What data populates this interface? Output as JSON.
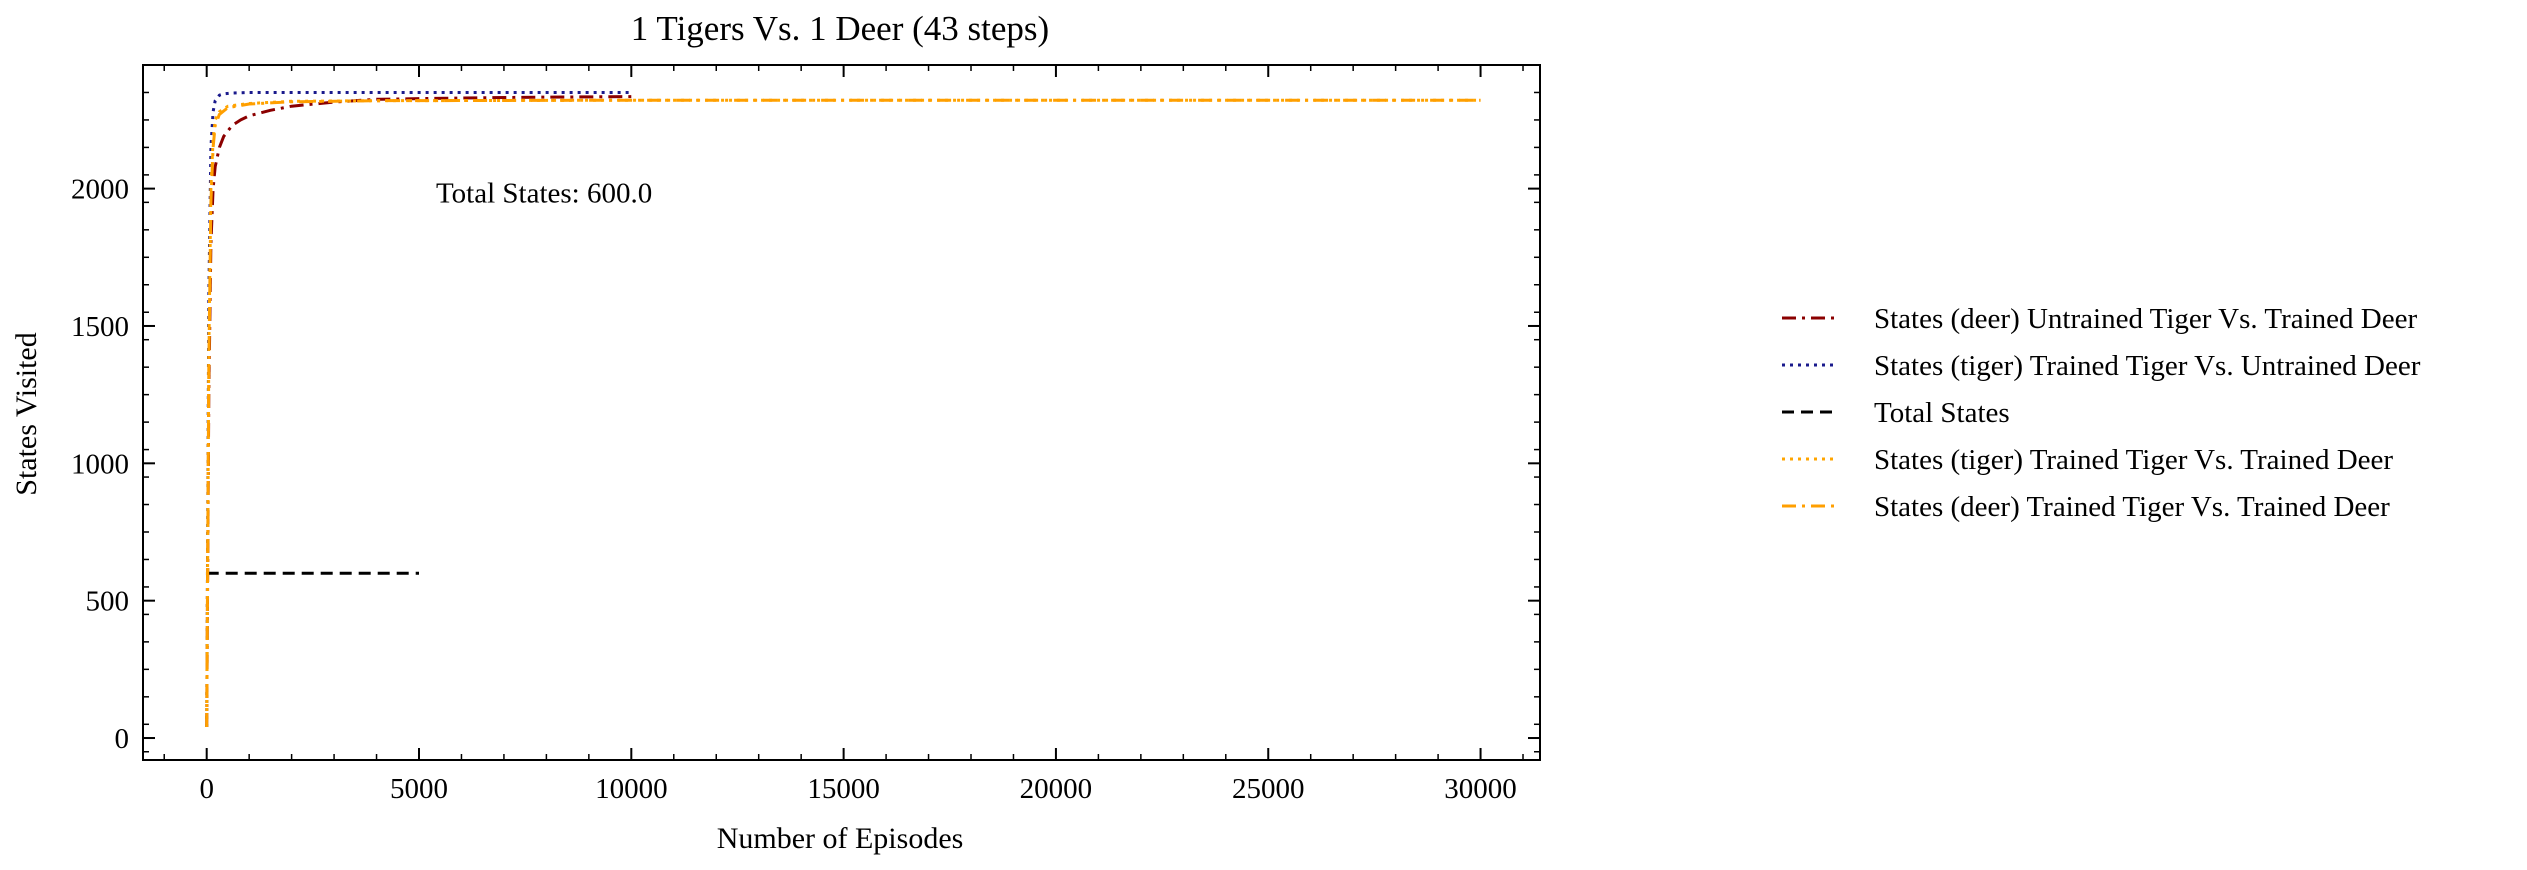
{
  "chart_data": {
    "type": "line",
    "title": "1 Tigers Vs. 1 Deer (43 steps)",
    "xlabel": "Number of Episodes",
    "ylabel": "States Visited",
    "xlim": [
      -1500,
      31400
    ],
    "ylim": [
      -80,
      2450
    ],
    "xticks": [
      0,
      5000,
      10000,
      15000,
      20000,
      25000,
      30000
    ],
    "yticks": [
      0,
      500,
      1000,
      1500,
      2000
    ],
    "grid": false,
    "legend_position": "right, outside plot",
    "annotation": {
      "text": "Total States: 600.0",
      "x": 5400,
      "y": 1950
    },
    "series": [
      {
        "name": "States (deer) Untrained Tiger Vs. Trained Deer",
        "color": "#8b0000",
        "dash": "dashdot",
        "x": [
          0,
          50,
          100,
          150,
          200,
          300,
          400,
          600,
          800,
          1000,
          1500,
          2000,
          3000,
          4000,
          6000,
          8000,
          10000
        ],
        "y": [
          40,
          1250,
          1800,
          2000,
          2080,
          2150,
          2190,
          2230,
          2250,
          2265,
          2285,
          2300,
          2315,
          2325,
          2330,
          2333,
          2335
        ]
      },
      {
        "name": "States (tiger) Trained Tiger Vs. Untrained Deer",
        "color": "#1a1a8c",
        "dash": "dotted",
        "x": [
          0,
          50,
          100,
          150,
          200,
          300,
          400,
          600,
          1000,
          2000,
          4000,
          6000,
          8000,
          10000
        ],
        "y": [
          40,
          1600,
          2150,
          2280,
          2320,
          2340,
          2345,
          2348,
          2350,
          2350,
          2350,
          2350,
          2350,
          2350
        ]
      },
      {
        "name": "Total States",
        "color": "#000000",
        "dash": "dashed",
        "x": [
          0,
          5000
        ],
        "y": [
          600,
          600
        ]
      },
      {
        "name": "States (tiger) Trained Tiger Vs. Trained Deer",
        "color": "#ffa500",
        "dash": "dotted",
        "x": [
          0,
          50,
          100,
          150,
          200,
          300,
          500,
          1000,
          2000,
          4000,
          10000,
          20000,
          30000
        ],
        "y": [
          40,
          1400,
          2000,
          2180,
          2250,
          2280,
          2300,
          2310,
          2318,
          2320,
          2322,
          2322,
          2322
        ]
      },
      {
        "name": "States (deer) Trained Tiger Vs. Trained Deer",
        "color": "#ff9f00",
        "dash": "dashdot",
        "x": [
          0,
          50,
          100,
          150,
          200,
          300,
          500,
          1000,
          2000,
          4000,
          10000,
          20000,
          30000
        ],
        "y": [
          40,
          1350,
          1950,
          2150,
          2230,
          2270,
          2295,
          2308,
          2316,
          2320,
          2322,
          2322,
          2322
        ]
      }
    ]
  }
}
